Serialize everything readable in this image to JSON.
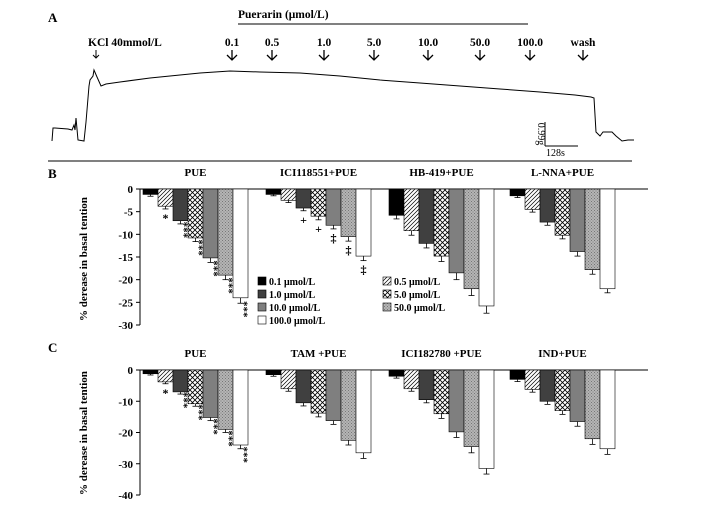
{
  "panel_a": {
    "letter": "A",
    "title": "Puerarin (μmol/L)",
    "kcl_label": "KCl 40mmol/L",
    "dose_labels": [
      "0.1",
      "0.5",
      "1.0",
      "5.0",
      "10.0",
      "50.0",
      "100.0",
      "wash"
    ],
    "scale_y": "0.99g",
    "scale_x": "128s"
  },
  "legend": {
    "entries": [
      "0.1 μmol/L",
      "0.5 μmol/L",
      "1.0 μmol/L",
      "5.0 μmol/L",
      "10.0 μmol/L",
      "50.0 μmol/L",
      "100.0 μmol/L"
    ]
  },
  "colors": {
    "s0": "#000000",
    "s2": "#404040",
    "s4": "#7f7f7f",
    "s5": "#a6a6a6",
    "s6": "#ffffff"
  },
  "chart_data": [
    {
      "type": "bar",
      "panel": "B",
      "ylabel": "% derease in basal tention",
      "ylim": [
        -30,
        0
      ],
      "yticks": [
        0,
        -5,
        -10,
        -15,
        -20,
        -25,
        -30
      ],
      "series_names": [
        "0.1 μmol/L",
        "0.5 μmol/L",
        "1.0 μmol/L",
        "5.0 μmol/L",
        "10.0 μmol/L",
        "50.0 μmol/L",
        "100.0 μmol/L"
      ],
      "groups": [
        {
          "label": "PUE",
          "values": [
            -1.2,
            -3.8,
            -7.0,
            -10.8,
            -15.2,
            -19.0,
            -24.0
          ],
          "errors": [
            0.4,
            0.6,
            0.7,
            0.8,
            1.0,
            1.0,
            1.2
          ],
          "marks": [
            "",
            "*",
            "***",
            "***",
            "***",
            "***",
            "***"
          ]
        },
        {
          "label": "ICI118551+PUE",
          "values": [
            -1.2,
            -2.5,
            -4.2,
            -6.0,
            -8.0,
            -10.5,
            -14.8
          ],
          "errors": [
            0.3,
            0.5,
            0.6,
            0.8,
            0.8,
            1.0,
            1.0
          ],
          "marks": [
            "",
            "",
            "+",
            "+",
            "‡",
            "‡",
            "‡"
          ]
        },
        {
          "label": "HB-419+PUE",
          "values": [
            -5.8,
            -9.2,
            -12.0,
            -14.8,
            -18.5,
            -22.0,
            -25.8
          ],
          "errors": [
            0.8,
            1.0,
            1.0,
            1.2,
            1.5,
            1.5,
            1.6
          ]
        },
        {
          "label": "L-NNA+PUE",
          "values": [
            -1.5,
            -4.5,
            -7.3,
            -10.2,
            -13.8,
            -17.8,
            -22.0
          ],
          "errors": [
            0.4,
            0.6,
            0.7,
            0.8,
            1.0,
            1.0,
            0.9
          ]
        }
      ]
    },
    {
      "type": "bar",
      "panel": "C",
      "ylabel": "% derease in basal tention",
      "ylim": [
        -40,
        0
      ],
      "yticks": [
        0,
        -10,
        -20,
        -30,
        -40
      ],
      "series_names": [
        "0.1 μmol/L",
        "0.5 μmol/L",
        "1.0 μmol/L",
        "5.0 μmol/L",
        "10.0 μmol/L",
        "50.0 μmol/L",
        "100.0 μmol/L"
      ],
      "groups": [
        {
          "label": "PUE",
          "values": [
            -1.2,
            -3.8,
            -7.0,
            -10.8,
            -15.2,
            -19.0,
            -24.0
          ],
          "errors": [
            0.4,
            0.6,
            0.7,
            0.8,
            1.0,
            1.0,
            1.2
          ],
          "marks": [
            "",
            "*",
            "***",
            "***",
            "***",
            "***",
            "***"
          ]
        },
        {
          "label": "TAM +PUE",
          "values": [
            -1.5,
            -6.0,
            -10.5,
            -13.8,
            -16.2,
            -22.5,
            -26.5
          ],
          "errors": [
            0.5,
            0.8,
            1.0,
            1.2,
            1.2,
            1.5,
            1.8
          ]
        },
        {
          "label": "ICI182780 +PUE",
          "values": [
            -2.0,
            -6.0,
            -9.5,
            -14.0,
            -19.8,
            -24.5,
            -31.5
          ],
          "errors": [
            0.6,
            0.8,
            1.0,
            1.5,
            1.8,
            2.0,
            1.8
          ]
        },
        {
          "label": "IND+PUE",
          "values": [
            -3.0,
            -6.2,
            -10.0,
            -13.0,
            -16.5,
            -22.0,
            -25.2
          ],
          "errors": [
            0.7,
            0.9,
            1.0,
            1.2,
            1.5,
            1.8,
            1.8
          ]
        }
      ]
    }
  ]
}
